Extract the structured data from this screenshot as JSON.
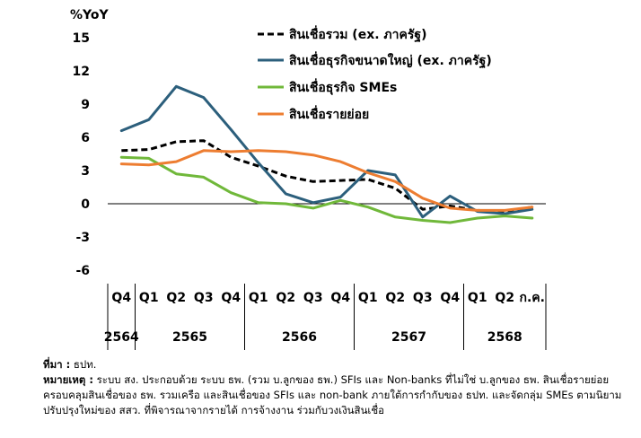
{
  "chart_data": {
    "type": "line",
    "ylabel": "%YoY",
    "ylim": [
      -6,
      15
    ],
    "yticks": [
      15,
      12,
      9,
      6,
      3,
      0,
      -3,
      -6
    ],
    "x": [
      "Q4",
      "Q1",
      "Q2",
      "Q3",
      "Q4",
      "Q1",
      "Q2",
      "Q3",
      "Q4",
      "Q1",
      "Q2",
      "Q3",
      "Q4",
      "Q1",
      "Q2",
      "ก.ค."
    ],
    "years": [
      "2564",
      "2565",
      "2566",
      "2567",
      "2568"
    ],
    "series": [
      {
        "name": "สินเชื่อรวม (ex. ภาครัฐ)",
        "color": "#000000",
        "dash": true,
        "values": [
          4.8,
          4.9,
          5.6,
          5.7,
          4.2,
          3.4,
          2.5,
          2.0,
          2.1,
          2.2,
          1.4,
          -0.5,
          -0.2,
          -0.6,
          -0.7,
          -0.3
        ]
      },
      {
        "name": "สินเชื่อธุรกิจขนาดใหญ่ (ex. ภาครัฐ)",
        "color": "#2c5f7c",
        "dash": false,
        "values": [
          6.6,
          7.6,
          10.6,
          9.6,
          6.7,
          3.7,
          0.9,
          0.1,
          0.6,
          3.0,
          2.6,
          -1.2,
          0.7,
          -0.7,
          -0.9,
          -0.5
        ]
      },
      {
        "name": "สินเชื่อธุรกิจ SMEs",
        "color": "#70b83a",
        "dash": false,
        "values": [
          4.2,
          4.1,
          2.7,
          2.4,
          1.0,
          0.1,
          0.0,
          -0.4,
          0.3,
          -0.3,
          -1.2,
          -1.5,
          -1.7,
          -1.3,
          -1.1,
          -1.3
        ]
      },
      {
        "name": "สินเชื่อรายย่อย",
        "color": "#ed7d31",
        "dash": false,
        "values": [
          3.6,
          3.5,
          3.8,
          4.8,
          4.7,
          4.8,
          4.7,
          4.4,
          3.8,
          2.8,
          2.0,
          0.5,
          -0.4,
          -0.6,
          -0.6,
          -0.3
        ]
      }
    ]
  },
  "notes": {
    "source_label": "ที่มา :",
    "source_text": "ธปท.",
    "note_label": "หมายเหตุ :",
    "note_text": "ระบบ สง. ประกอบด้วย ระบบ ธพ. (รวม บ.ลูกของ ธพ.) SFIs และ Non-banks ที่ไม่ใช่ บ.ลูกของ ธพ. สินเชื่อรายย่อยครอบคลุมสินเชื่อของ ธพ. รวมเครือ และสินเชื่อของ SFIs และ non-bank ภายใต้การกำกับของ ธปท. และจัดกลุ่ม SMEs ตามนิยามปรับปรุงใหม่ของ สสว. ที่พิจารณาจากรายได้ การจ้างงาน ร่วมกับวงเงินสินเชื่อ"
  }
}
